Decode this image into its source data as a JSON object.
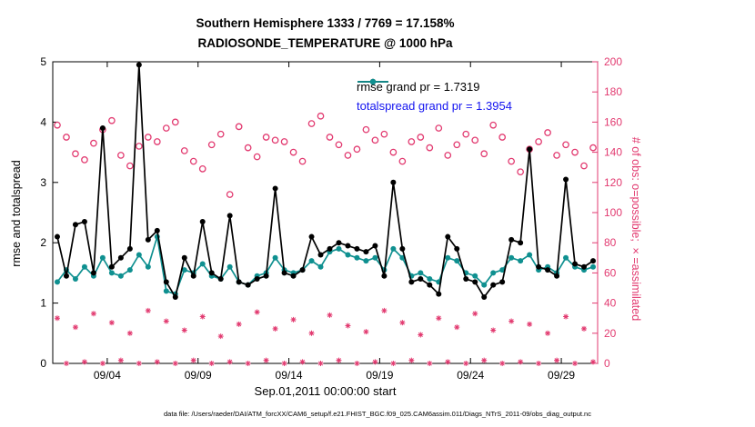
{
  "title": {
    "line1": "Southern Hemisphere 1333 / 7769 = 17.158%",
    "line2": "RADIOSONDE_TEMPERATURE @ 1000 hPa"
  },
  "xlabel": "Sep.01,2011 00:00:00 start",
  "ylabel_left": "rmse and totalspread",
  "ylabel_right": "# of obs: o=possible; ×=assimilated",
  "caption": "data file: /Users/raeder/DAI/ATM_forcXX/CAM6_setup/f.e21.FHIST_BGC.f09_025.CAM6assim.011/Diags_NTrS_2011-09/obs_diag_output.nc",
  "colors": {
    "pink": "#e23a70",
    "teal": "#0f9090",
    "black": "#000000",
    "legend_text_blue": "#1414f0"
  },
  "legend": {
    "rmse": {
      "label": "rmse grand pr = 1.7319",
      "line_color": "#000000",
      "text_color": "#000000"
    },
    "totalspread": {
      "label": "totalspread grand pr = 1.3954",
      "line_color": "#0f9090",
      "text_color": "#1414f0"
    }
  },
  "chart_data": {
    "type": "line",
    "title": "Southern Hemisphere 1333 / 7769 = 17.158% | RADIOSONDE_TEMPERATURE @ 1000 hPa",
    "xlabel": "Sep.01,2011 00:00:00 start",
    "legend_position": "inside top-center-right",
    "grid": false,
    "x_range_days": [
      0,
      30
    ],
    "x_ticks": [
      {
        "day": 3,
        "label": "09/04"
      },
      {
        "day": 8,
        "label": "09/09"
      },
      {
        "day": 13,
        "label": "09/14"
      },
      {
        "day": 18,
        "label": "09/19"
      },
      {
        "day": 23,
        "label": "09/24"
      },
      {
        "day": 28,
        "label": "09/29"
      }
    ],
    "left_axis": {
      "label": "rmse and totalspread",
      "min": 0,
      "max": 5,
      "ticks": [
        0,
        1,
        2,
        3,
        4,
        5
      ]
    },
    "right_axis": {
      "label": "# of obs: o=possible; ×=assimilated",
      "min": 0,
      "max": 200,
      "ticks": [
        0,
        20,
        40,
        60,
        80,
        100,
        120,
        140,
        160,
        180,
        200
      ],
      "color": "#e23a70"
    },
    "times_days": [
      0.25,
      0.75,
      1.25,
      1.75,
      2.25,
      2.75,
      3.25,
      3.75,
      4.25,
      4.75,
      5.25,
      5.75,
      6.25,
      6.75,
      7.25,
      7.75,
      8.25,
      8.75,
      9.25,
      9.75,
      10.25,
      10.75,
      11.25,
      11.75,
      12.25,
      12.75,
      13.25,
      13.75,
      14.25,
      14.75,
      15.25,
      15.75,
      16.25,
      16.75,
      17.25,
      17.75,
      18.25,
      18.75,
      19.25,
      19.75,
      20.25,
      20.75,
      21.25,
      21.75,
      22.25,
      22.75,
      23.25,
      23.75,
      24.25,
      24.75,
      25.25,
      25.75,
      26.25,
      26.75,
      27.25,
      27.75,
      28.25,
      28.75,
      29.25,
      29.75
    ],
    "series": [
      {
        "name": "possible",
        "axis": "right",
        "marker": "open-circle",
        "line": false,
        "color": "#e23a70",
        "values": [
          158,
          150,
          139,
          135,
          146,
          155,
          161,
          138,
          131,
          144,
          150,
          147,
          156,
          160,
          141,
          134,
          129,
          145,
          152,
          112,
          157,
          143,
          137,
          150,
          148,
          147,
          140,
          134,
          159,
          164,
          150,
          145,
          138,
          142,
          155,
          148,
          152,
          140,
          134,
          147,
          150,
          143,
          156,
          138,
          145,
          152,
          148,
          139,
          158,
          150,
          134,
          127,
          142,
          147,
          153,
          138,
          145,
          140,
          131,
          143
        ]
      },
      {
        "name": "assimilated",
        "axis": "right",
        "marker": "asterisk",
        "line": false,
        "color": "#e23a70",
        "values": [
          30,
          0,
          24,
          1,
          33,
          0,
          27,
          2,
          20,
          0,
          35,
          1,
          28,
          0,
          22,
          2,
          31,
          0,
          18,
          1,
          26,
          0,
          34,
          2,
          23,
          0,
          29,
          1,
          20,
          0,
          32,
          2,
          25,
          0,
          21,
          1,
          35,
          0,
          27,
          2,
          19,
          0,
          30,
          1,
          24,
          0,
          33,
          2,
          22,
          0,
          28,
          1,
          26,
          0,
          20,
          2,
          31,
          0,
          23,
          1
        ]
      },
      {
        "name": "totalspread",
        "axis": "left",
        "marker": "filled-circle",
        "line": true,
        "color": "#0f9090",
        "grand_prior_mean": 1.3954,
        "values": [
          1.35,
          1.55,
          1.4,
          1.6,
          1.45,
          1.75,
          1.5,
          1.45,
          1.55,
          1.8,
          1.6,
          2.1,
          1.2,
          1.15,
          1.55,
          1.5,
          1.65,
          1.45,
          1.4,
          1.6,
          1.35,
          1.3,
          1.45,
          1.5,
          1.75,
          1.55,
          1.5,
          1.55,
          1.7,
          1.6,
          1.85,
          1.9,
          1.8,
          1.75,
          1.7,
          1.75,
          1.55,
          1.9,
          1.75,
          1.45,
          1.5,
          1.4,
          1.35,
          1.75,
          1.7,
          1.5,
          1.45,
          1.3,
          1.5,
          1.55,
          1.75,
          1.7,
          1.8,
          1.55,
          1.6,
          1.5,
          1.75,
          1.6,
          1.55,
          1.6
        ]
      },
      {
        "name": "rmse",
        "axis": "left",
        "marker": "filled-circle",
        "line": true,
        "color": "#000000",
        "grand_prior_mean": 1.7319,
        "values": [
          2.1,
          1.45,
          2.3,
          2.35,
          1.5,
          3.9,
          1.6,
          1.75,
          1.9,
          4.95,
          2.05,
          2.2,
          1.35,
          1.1,
          1.75,
          1.45,
          2.35,
          1.5,
          1.4,
          2.45,
          1.35,
          1.3,
          1.4,
          1.45,
          2.9,
          1.5,
          1.45,
          1.55,
          2.1,
          1.8,
          1.9,
          2.0,
          1.95,
          1.9,
          1.85,
          1.95,
          1.45,
          3.0,
          1.9,
          1.35,
          1.4,
          1.3,
          1.15,
          2.1,
          1.9,
          1.4,
          1.35,
          1.1,
          1.3,
          1.35,
          2.05,
          2.0,
          3.55,
          1.6,
          1.55,
          1.45,
          3.05,
          1.65,
          1.6,
          1.7
        ]
      }
    ]
  }
}
